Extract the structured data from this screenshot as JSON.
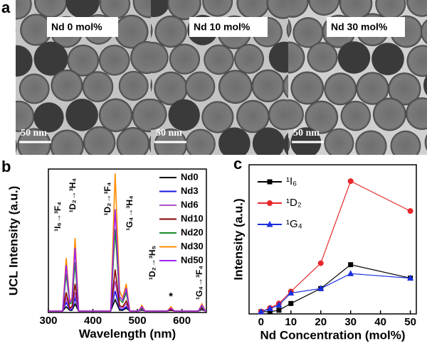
{
  "panel_a": {
    "label": "a",
    "images": [
      {
        "label": "Nd 0 mol%",
        "scale_bar": "50 nm"
      },
      {
        "label": "Nd 10 mol%",
        "scale_bar": "50 nm"
      },
      {
        "label": "Nd 30 mol%",
        "scale_bar": "50 nm"
      }
    ]
  },
  "chart_data": [
    {
      "type": "line",
      "panel_label": "b",
      "x_label": "Wavelength (nm)",
      "y_label": "UCL Intensity (a.u.)",
      "x": [
        300,
        332,
        340,
        348,
        353,
        360,
        368,
        440,
        450,
        460,
        467,
        475,
        483,
        503,
        510,
        517,
        567,
        575,
        583,
        637,
        645,
        653,
        660
      ],
      "xlim": [
        300,
        655
      ],
      "xticks": [
        300,
        400,
        500,
        600
      ],
      "ylim": [
        0,
        100
      ],
      "legend": "upper right",
      "markers": false,
      "series": [
        {
          "name": "Nd0",
          "color": "#000000",
          "values": [
            1,
            1,
            4,
            1.5,
            1.5,
            6,
            1,
            1,
            9,
            1.5,
            1.5,
            3,
            1,
            1,
            1.5,
            1,
            1,
            1.5,
            1,
            1,
            2,
            1,
            1
          ]
        },
        {
          "name": "Nd3",
          "color": "#1515e0",
          "values": [
            1,
            1,
            7,
            2,
            2,
            10,
            1,
            1,
            15,
            2.5,
            2,
            4,
            1,
            1,
            2,
            1,
            1,
            2,
            1,
            1,
            2.5,
            1,
            1
          ]
        },
        {
          "name": "Nd6",
          "color": "#b050c8",
          "values": [
            1,
            1,
            10,
            2.5,
            3,
            14,
            1,
            1,
            22,
            3.5,
            3,
            6,
            1,
            1,
            2,
            1,
            1,
            2,
            1,
            1,
            3,
            1,
            1
          ]
        },
        {
          "name": "Nd10",
          "color": "#8b0000",
          "values": [
            1,
            1,
            14,
            3,
            4,
            20,
            1,
            1,
            30,
            4.5,
            4,
            8,
            1,
            1,
            2.5,
            1,
            1,
            2,
            1,
            1,
            3,
            1,
            1
          ]
        },
        {
          "name": "Nd20",
          "color": "#1a8a2a",
          "values": [
            1,
            1,
            27,
            6,
            7,
            35,
            1,
            1,
            58,
            9,
            7,
            14,
            1,
            1,
            3,
            1,
            1,
            3,
            1,
            1,
            4,
            1,
            1
          ]
        },
        {
          "name": "Nd30",
          "color": "#ff8c00",
          "values": [
            1,
            1,
            38,
            8,
            10,
            52,
            1,
            1,
            97,
            15,
            10,
            20,
            1,
            1,
            5,
            1,
            1,
            4,
            1,
            1,
            6,
            1,
            1
          ]
        },
        {
          "name": "Nd50",
          "color": "#a020f0",
          "values": [
            1,
            1,
            33,
            7,
            9,
            45,
            1,
            1,
            72,
            11,
            8.5,
            17,
            1,
            1,
            4,
            1,
            1,
            3,
            1,
            1,
            5,
            1,
            1
          ]
        }
      ],
      "annotations": [
        "¹I₆→³F₄",
        "¹D₂→³H₄",
        "¹D₂→³F₄",
        "¹G₄→³H₄",
        "¹D₂→³H₅",
        "*",
        "¹G₄→³F₄"
      ]
    },
    {
      "type": "line",
      "panel_label": "c",
      "x_label": "Nd Concentration (mol%)",
      "y_label": "Intensity (a.u.)",
      "x": [
        0,
        3,
        6,
        10,
        20,
        30,
        50
      ],
      "xlim": [
        -4,
        52
      ],
      "xticks": [
        0,
        10,
        20,
        30,
        40,
        50
      ],
      "ylim": [
        0,
        100
      ],
      "legend": "upper left",
      "markers": true,
      "series": [
        {
          "name": "¹I₆",
          "color": "#000000",
          "marker": "square",
          "values": [
            1.5,
            1.5,
            2.5,
            7,
            17,
            33,
            24
          ]
        },
        {
          "name": "¹D₂",
          "color": "#e8262a",
          "marker": "circle",
          "values": [
            1.5,
            4,
            7,
            15,
            34,
            89,
            69
          ]
        },
        {
          "name": "¹G₄",
          "color": "#1a2fe0",
          "marker": "triangle",
          "values": [
            1.5,
            3.5,
            6,
            14,
            17,
            27,
            24
          ]
        }
      ]
    }
  ]
}
